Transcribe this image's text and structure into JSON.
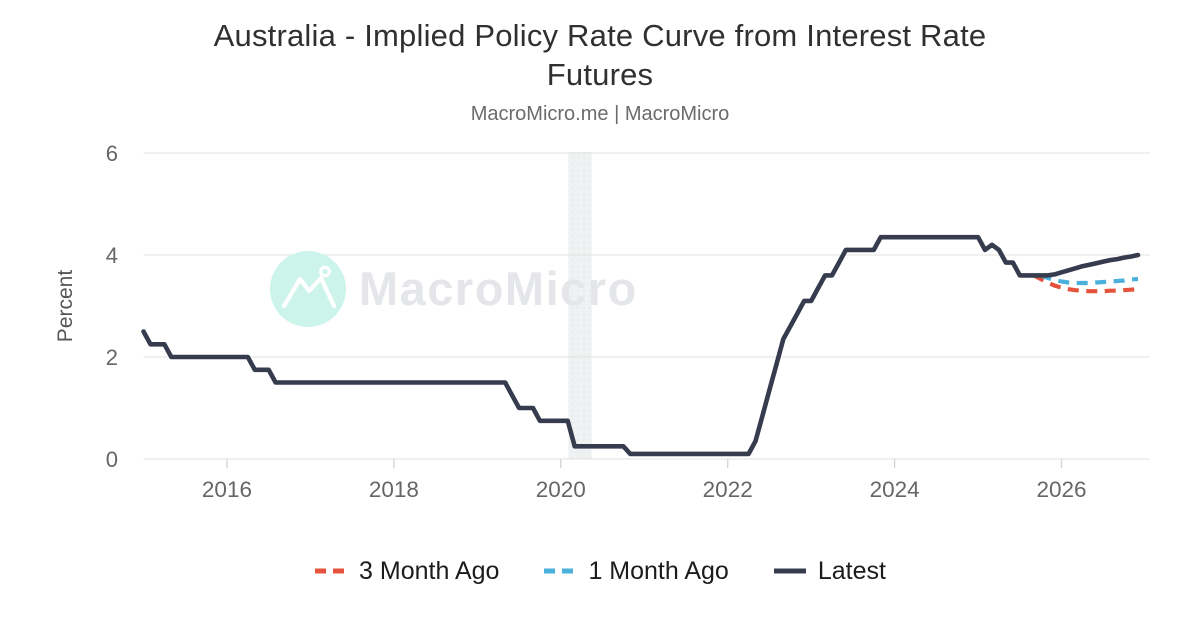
{
  "header": {
    "title_lines": [
      "Australia - Implied Policy Rate Curve from Interest Rate",
      "Futures"
    ],
    "subtitle": "MacroMicro.me | MacroMicro"
  },
  "watermark": {
    "brand": "MacroMicro",
    "circle_color": "#cdf4ea",
    "text_color": "#e4e6e9"
  },
  "colors": {
    "latest": "#363c4d",
    "three_month_ago": "#e6533c",
    "one_month_ago": "#4bb1dc",
    "gridline": "#e6e6e6",
    "tick_mark": "#d4d4d4",
    "axis_text": "#666666",
    "band": "#f0f1f2",
    "band_dot": "#e3e7e7"
  },
  "chart_data": {
    "type": "line",
    "title": "Australia - Implied Policy Rate Curve from Interest Rate Futures",
    "subtitle": "MacroMicro.me | MacroMicro",
    "xlabel": "",
    "ylabel": "Percent",
    "ylim": [
      0,
      6
    ],
    "xlim": [
      2015,
      2027.06
    ],
    "y_ticks": [
      0,
      2,
      4,
      6
    ],
    "x_ticks": [
      2016,
      2018,
      2020,
      2022,
      2024,
      2026
    ],
    "grid": "horizontal-only",
    "legend_position": "bottom",
    "x_unit": "decimal_year",
    "frequency": "monthly",
    "recession_band": {
      "from": 2020.09,
      "to": 2020.37
    },
    "series": [
      {
        "name": "3 Month Ago",
        "color": "#e6533c",
        "style": "dashed",
        "start": "2025-09",
        "values": [
          3.6,
          3.53,
          3.46,
          3.4,
          3.36,
          3.33,
          3.31,
          3.3,
          3.29,
          3.29,
          3.29,
          3.3,
          3.3,
          3.31,
          3.32,
          3.33
        ]
      },
      {
        "name": "1 Month Ago",
        "color": "#4bb1dc",
        "style": "dashed",
        "start": "2025-10",
        "values": [
          3.6,
          3.55,
          3.51,
          3.48,
          3.46,
          3.45,
          3.45,
          3.45,
          3.46,
          3.47,
          3.48,
          3.49,
          3.5,
          3.52,
          3.53
        ]
      },
      {
        "name": "Latest",
        "color": "#363c4d",
        "style": "solid",
        "start": "2015-01",
        "values": [
          2.5,
          2.25,
          2.25,
          2.25,
          2,
          2,
          2,
          2,
          2,
          2,
          2,
          2,
          2,
          2,
          2,
          2,
          1.75,
          1.75,
          1.75,
          1.5,
          1.5,
          1.5,
          1.5,
          1.5,
          1.5,
          1.5,
          1.5,
          1.5,
          1.5,
          1.5,
          1.5,
          1.5,
          1.5,
          1.5,
          1.5,
          1.5,
          1.5,
          1.5,
          1.5,
          1.5,
          1.5,
          1.5,
          1.5,
          1.5,
          1.5,
          1.5,
          1.5,
          1.5,
          1.5,
          1.5,
          1.5,
          1.5,
          1.5,
          1.25,
          1,
          1,
          1,
          0.75,
          0.75,
          0.75,
          0.75,
          0.75,
          0.25,
          0.25,
          0.25,
          0.25,
          0.25,
          0.25,
          0.25,
          0.25,
          0.1,
          0.1,
          0.1,
          0.1,
          0.1,
          0.1,
          0.1,
          0.1,
          0.1,
          0.1,
          0.1,
          0.1,
          0.1,
          0.1,
          0.1,
          0.1,
          0.1,
          0.1,
          0.35,
          0.85,
          1.35,
          1.85,
          2.35,
          2.6,
          2.85,
          3.1,
          3.1,
          3.35,
          3.6,
          3.6,
          3.85,
          4.1,
          4.1,
          4.1,
          4.1,
          4.1,
          4.35,
          4.35,
          4.35,
          4.35,
          4.35,
          4.35,
          4.35,
          4.35,
          4.35,
          4.35,
          4.35,
          4.35,
          4.35,
          4.35,
          4.35,
          4.1,
          4.2,
          4.1,
          3.85,
          3.85,
          3.6,
          3.6,
          3.6,
          3.6,
          3.6,
          3.62,
          3.66,
          3.7,
          3.74,
          3.78,
          3.81,
          3.84,
          3.87,
          3.9,
          3.92,
          3.95,
          3.97,
          4
        ]
      }
    ]
  }
}
